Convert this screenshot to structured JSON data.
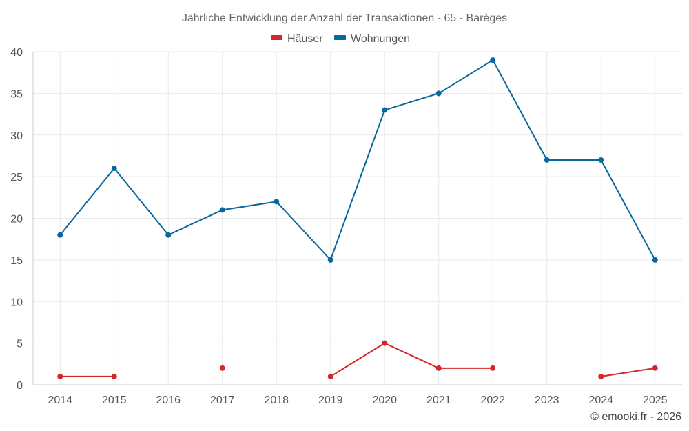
{
  "chart_data": {
    "type": "line",
    "title": "Jährliche Entwicklung der Anzahl der Transaktionen - 65 - Barèges",
    "xlabel": "",
    "ylabel": "",
    "categories": [
      "2014",
      "2015",
      "2016",
      "2017",
      "2018",
      "2019",
      "2020",
      "2021",
      "2022",
      "2023",
      "2024",
      "2025"
    ],
    "ylim": [
      0,
      40
    ],
    "yticks": [
      0,
      5,
      10,
      15,
      20,
      25,
      30,
      35,
      40
    ],
    "grid": true,
    "legend_position": "top-center",
    "series": [
      {
        "name": "Häuser",
        "color": "#d62728",
        "values": [
          1,
          1,
          null,
          2,
          null,
          1,
          5,
          2,
          2,
          null,
          1,
          2
        ]
      },
      {
        "name": "Wohnungen",
        "color": "#08689c",
        "values": [
          18,
          26,
          18,
          21,
          22,
          15,
          33,
          35,
          39,
          27,
          27,
          15
        ]
      }
    ]
  },
  "credit": "© emooki.fr - 2026"
}
